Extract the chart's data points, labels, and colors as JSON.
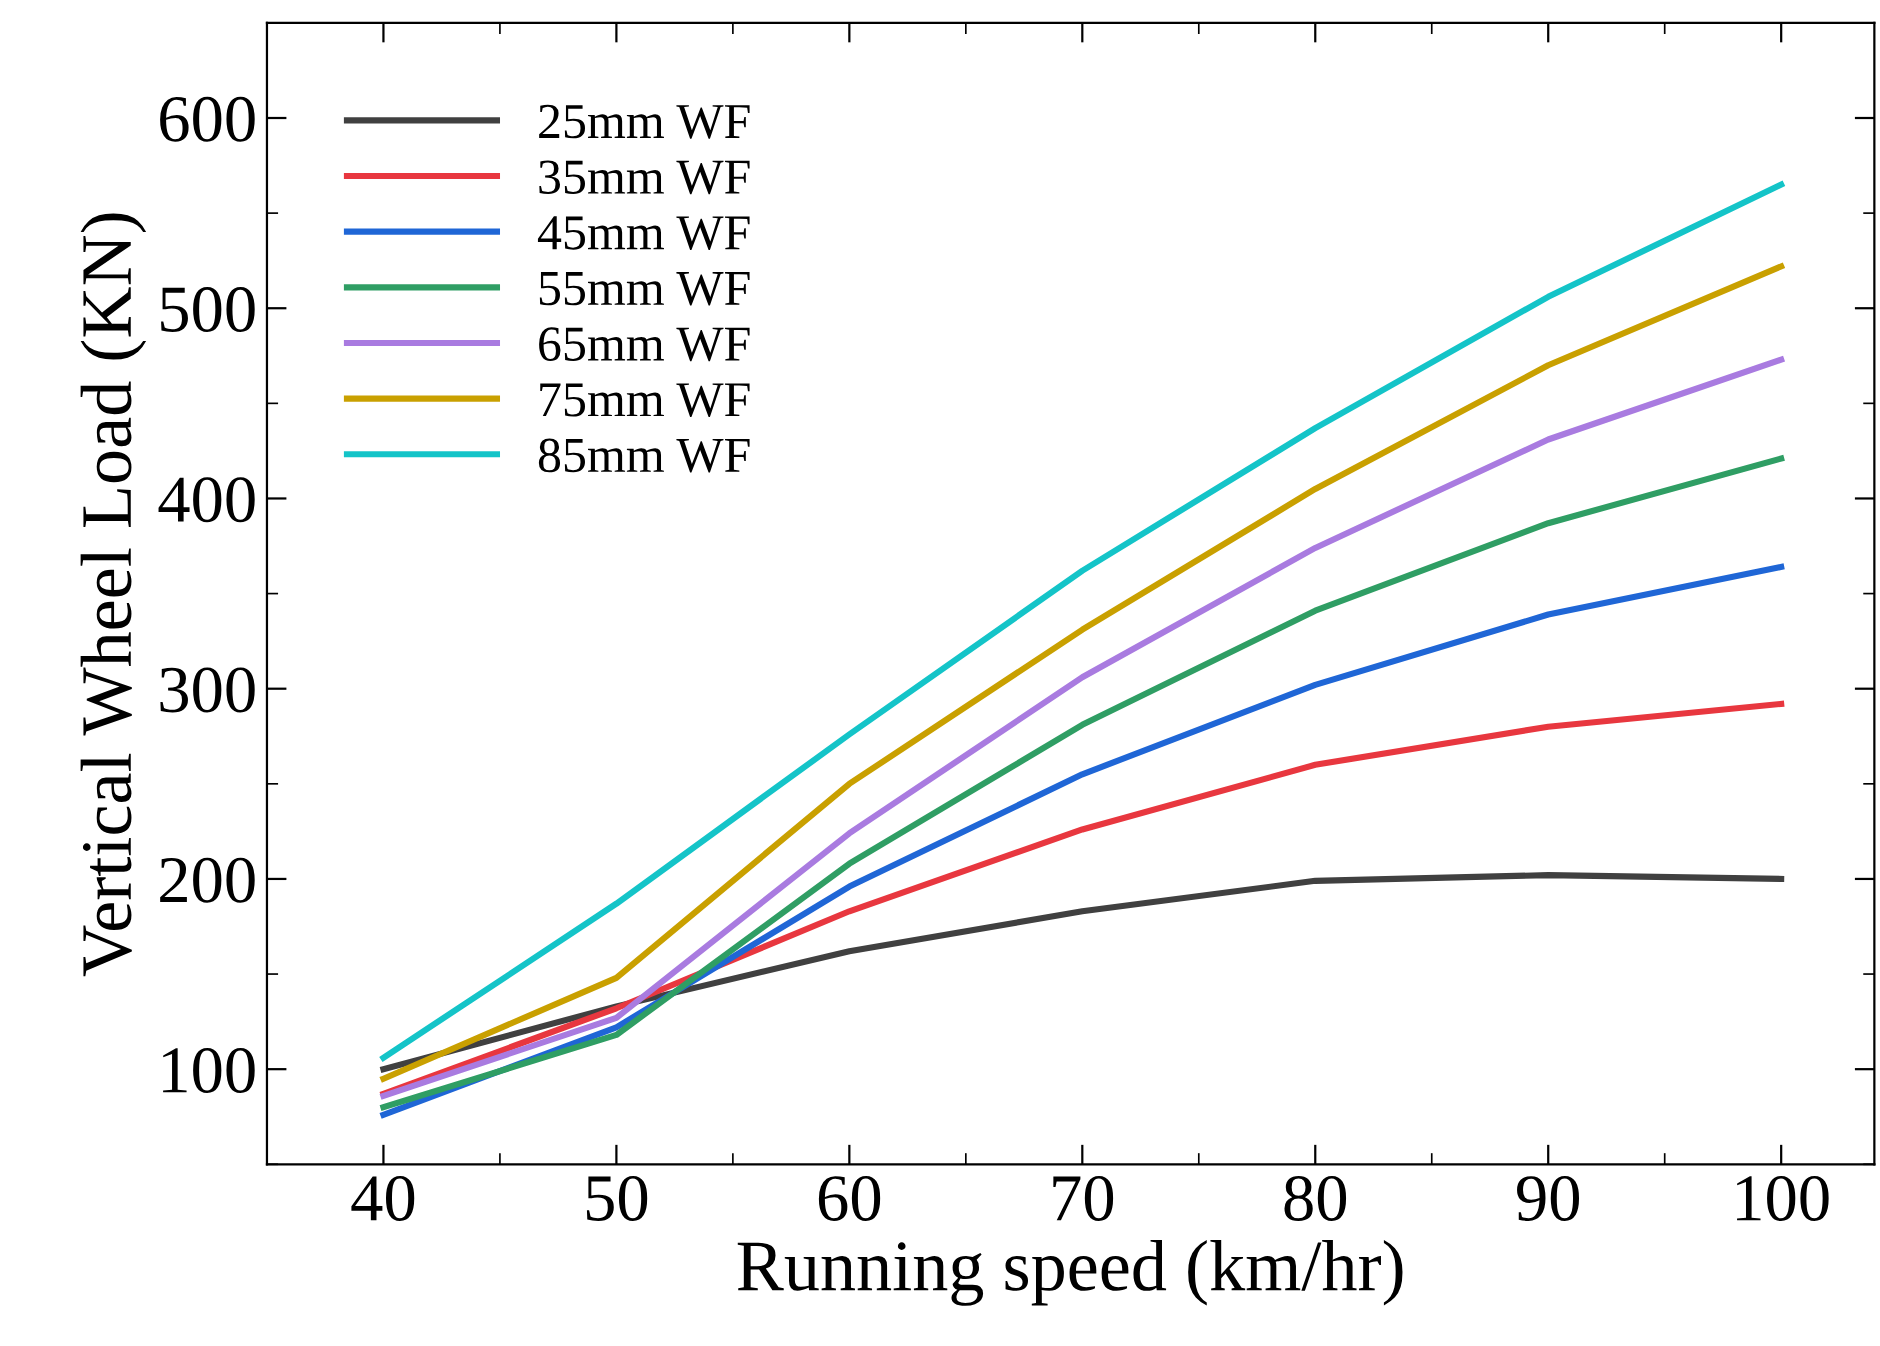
{
  "chart_data": {
    "type": "line",
    "xlabel": "Running speed (km/hr)",
    "ylabel": "Vertical Wheel Load (KN)",
    "x": [
      40,
      50,
      60,
      70,
      80,
      90,
      100
    ],
    "series": [
      {
        "name": "25mm WF",
        "color": "#404040",
        "values": [
          100,
          133,
          162,
          183,
          199,
          202,
          200
        ]
      },
      {
        "name": "35mm WF",
        "color": "#e8373f",
        "values": [
          87,
          132,
          183,
          226,
          260,
          280,
          292
        ]
      },
      {
        "name": "45mm WF",
        "color": "#1f66d6",
        "values": [
          76,
          122,
          196,
          255,
          302,
          339,
          364
        ]
      },
      {
        "name": "55mm WF",
        "color": "#2f9e64",
        "values": [
          80,
          118,
          208,
          281,
          341,
          387,
          421
        ]
      },
      {
        "name": "65mm WF",
        "color": "#a97be0",
        "values": [
          86,
          127,
          224,
          306,
          374,
          431,
          473
        ]
      },
      {
        "name": "75mm WF",
        "color": "#c9a000",
        "values": [
          95,
          148,
          250,
          331,
          405,
          470,
          522
        ]
      },
      {
        "name": "85mm WF",
        "color": "#14c4c8",
        "values": [
          106,
          187,
          276,
          362,
          437,
          506,
          565
        ]
      }
    ],
    "xlim": [
      35,
      104
    ],
    "ylim": [
      50,
      650
    ],
    "xticks": [
      40,
      50,
      60,
      70,
      80,
      90,
      100
    ],
    "yticks": [
      100,
      200,
      300,
      400,
      500,
      600
    ],
    "grid": false,
    "legend": "top left",
    "marker": "none",
    "line_style": "solid"
  }
}
